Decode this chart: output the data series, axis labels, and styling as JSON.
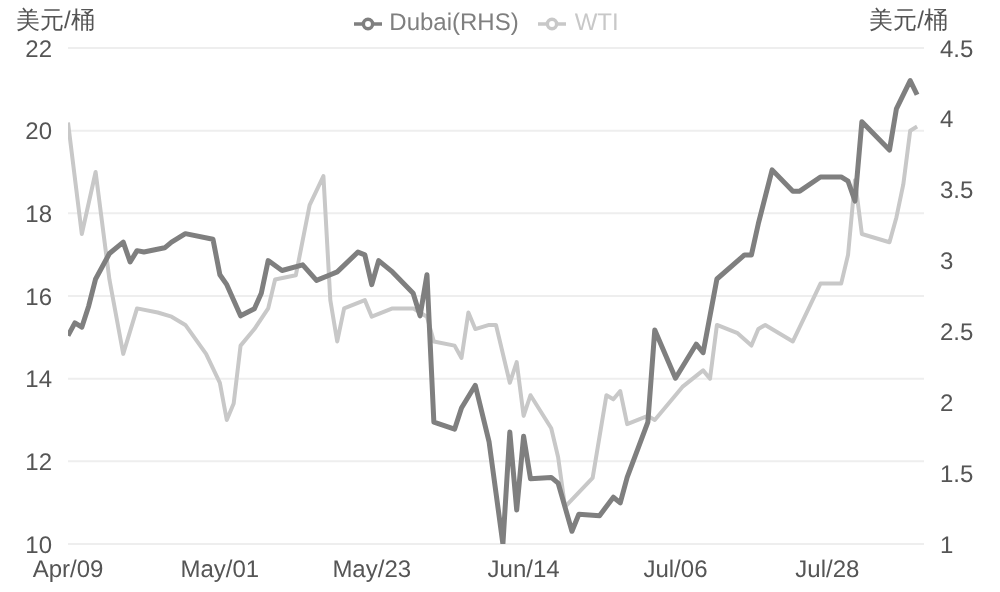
{
  "chart_data": {
    "type": "line",
    "ylabel": "美元/桶",
    "y2label": "美元/桶",
    "xlim": [
      "--04-09",
      "--08-11"
    ],
    "xticks": [
      {
        "value": "--04-09",
        "label": "Apr/09"
      },
      {
        "value": "--05-01",
        "label": "May/01"
      },
      {
        "value": "--05-23",
        "label": "May/23"
      },
      {
        "value": "--06-14",
        "label": "Jun/14"
      },
      {
        "value": "--07-06",
        "label": "Jul/06"
      },
      {
        "value": "--07-28",
        "label": "Jul/28"
      }
    ],
    "ylim": [
      10,
      22
    ],
    "yticks": [
      10,
      12,
      14,
      16,
      18,
      20,
      22
    ],
    "y2lim": [
      1,
      4.5
    ],
    "y2ticks": [
      1,
      1.5,
      2,
      2.5,
      3,
      3.5,
      4,
      4.5
    ],
    "grid": "y",
    "legend": "top",
    "marker": "none",
    "line_style": "solid",
    "series": [
      {
        "name": "WTI",
        "color": "#c8c8c8",
        "x": [
          "--04-09",
          "--04-11",
          "--04-13",
          "--04-15",
          "--04-17",
          "--04-19",
          "--04-22",
          "--04-24",
          "--04-26",
          "--04-29",
          "--05-01",
          "--05-02",
          "--05-03",
          "--05-04",
          "--05-06",
          "--05-08",
          "--05-09",
          "--05-12",
          "--05-14",
          "--05-16",
          "--05-17",
          "--05-18",
          "--05-19",
          "--05-22",
          "--05-23",
          "--05-26",
          "--05-29",
          "--05-31",
          "--06-01",
          "--06-04",
          "--06-05",
          "--06-06",
          "--06-07",
          "--06-09",
          "--06-10",
          "--06-12",
          "--06-13",
          "--06-14",
          "--06-15",
          "--06-18",
          "--06-19",
          "--06-20",
          "--06-24",
          "--06-26",
          "--06-27",
          "--06-28",
          "--06-29",
          "--07-02",
          "--07-03",
          "--07-07",
          "--07-10",
          "--07-11",
          "--07-12",
          "--07-15",
          "--07-17",
          "--07-18",
          "--07-19",
          "--07-23",
          "--07-25",
          "--07-27",
          "--07-30",
          "--07-31",
          "--08-01",
          "--08-02",
          "--08-06",
          "--08-07",
          "--08-08",
          "--08-09",
          "--08-10"
        ],
        "values": [
          20.2,
          17.5,
          19.0,
          16.4,
          14.6,
          15.7,
          15.6,
          15.5,
          15.3,
          14.6,
          13.9,
          13.0,
          13.4,
          14.8,
          15.2,
          15.7,
          16.4,
          16.5,
          18.2,
          18.9,
          15.9,
          14.9,
          15.7,
          15.9,
          15.5,
          15.7,
          15.7,
          15.5,
          14.9,
          14.8,
          14.5,
          15.6,
          15.2,
          15.3,
          15.3,
          13.9,
          14.4,
          13.1,
          13.6,
          12.8,
          12.1,
          10.9,
          11.6,
          13.6,
          13.5,
          13.7,
          12.9,
          13.1,
          13.0,
          13.8,
          14.2,
          14.0,
          15.3,
          15.1,
          14.8,
          15.2,
          15.3,
          14.9,
          15.6,
          16.3,
          16.3,
          17.0,
          18.8,
          17.5,
          17.3,
          17.9,
          18.7,
          20.0,
          20.1
        ]
      },
      {
        "name": "Dubai(RHS)",
        "color": "#7f7f7f",
        "axis": "y2",
        "x": [
          "--04-09",
          "--04-10",
          "--04-11",
          "--04-12",
          "--04-13",
          "--04-15",
          "--04-17",
          "--04-18",
          "--04-19",
          "--04-20",
          "--04-23",
          "--04-24",
          "--04-26",
          "--04-30",
          "--05-01",
          "--05-02",
          "--05-04",
          "--05-06",
          "--05-07",
          "--05-08",
          "--05-10",
          "--05-13",
          "--05-15",
          "--05-17",
          "--05-18",
          "--05-21",
          "--05-22",
          "--05-23",
          "--05-24",
          "--05-26",
          "--05-29",
          "--05-30",
          "--05-31",
          "--06-01",
          "--06-04",
          "--06-05",
          "--06-07",
          "--06-09",
          "--06-10",
          "--06-11",
          "--06-12",
          "--06-13",
          "--06-14",
          "--06-15",
          "--06-18",
          "--06-19",
          "--06-21",
          "--06-22",
          "--06-25",
          "--06-27",
          "--06-28",
          "--06-29",
          "--07-02",
          "--07-03",
          "--07-06",
          "--07-09",
          "--07-10",
          "--07-12",
          "--07-16",
          "--07-17",
          "--07-18",
          "--07-20",
          "--07-23",
          "--07-24",
          "--07-27",
          "--07-30",
          "--07-31",
          "--08-01",
          "--08-02",
          "--08-06",
          "--08-07",
          "--08-09",
          "--08-10"
        ],
        "values": [
          2.47,
          2.56,
          2.53,
          2.68,
          2.87,
          3.05,
          3.13,
          2.99,
          3.07,
          3.06,
          3.09,
          3.13,
          3.19,
          3.15,
          2.9,
          2.83,
          2.61,
          2.66,
          2.77,
          3.0,
          2.93,
          2.97,
          2.86,
          2.9,
          2.92,
          3.06,
          3.04,
          2.83,
          3.0,
          2.92,
          2.77,
          2.61,
          2.9,
          1.86,
          1.81,
          1.96,
          2.12,
          1.72,
          1.36,
          1.0,
          1.79,
          1.24,
          1.76,
          1.46,
          1.47,
          1.43,
          1.09,
          1.21,
          1.2,
          1.33,
          1.29,
          1.47,
          1.86,
          2.51,
          2.17,
          2.41,
          2.35,
          2.87,
          3.04,
          3.04,
          3.26,
          3.64,
          3.49,
          3.49,
          3.59,
          3.59,
          3.56,
          3.42,
          3.98,
          3.78,
          4.07,
          4.27,
          4.17
        ]
      }
    ]
  }
}
